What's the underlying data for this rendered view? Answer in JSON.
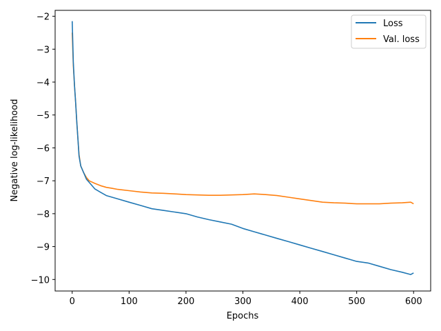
{
  "chart_data": {
    "type": "line",
    "xlabel": "Epochs",
    "ylabel": "Negative log-likelihood",
    "xlim": [
      -30,
      630
    ],
    "ylim": [
      -10.35,
      -1.82
    ],
    "xticks": [
      0,
      100,
      200,
      300,
      400,
      500,
      600
    ],
    "yticks": [
      -10,
      -9,
      -8,
      -7,
      -6,
      -5,
      -4,
      -3,
      -2
    ],
    "grid": false,
    "legend_position": "top-right",
    "series": [
      {
        "name": "Loss",
        "color": "#1f77b4",
        "x": [
          0,
          2,
          4,
          6,
          8,
          10,
          12,
          15,
          20,
          25,
          30,
          40,
          50,
          60,
          70,
          80,
          100,
          120,
          140,
          160,
          180,
          200,
          220,
          240,
          260,
          280,
          300,
          320,
          340,
          360,
          380,
          400,
          420,
          440,
          460,
          480,
          500,
          520,
          540,
          560,
          580,
          595,
          600
        ],
        "y": [
          -2.15,
          -3.4,
          -4.1,
          -4.6,
          -5.2,
          -5.7,
          -6.25,
          -6.55,
          -6.75,
          -6.95,
          -7.05,
          -7.25,
          -7.35,
          -7.45,
          -7.5,
          -7.55,
          -7.65,
          -7.75,
          -7.85,
          -7.9,
          -7.95,
          -8.0,
          -8.1,
          -8.18,
          -8.25,
          -8.32,
          -8.45,
          -8.55,
          -8.65,
          -8.75,
          -8.85,
          -8.95,
          -9.05,
          -9.15,
          -9.25,
          -9.35,
          -9.45,
          -9.5,
          -9.6,
          -9.7,
          -9.78,
          -9.85,
          -9.8
        ]
      },
      {
        "name": "Val. loss",
        "color": "#ff7f0e",
        "x": [
          0,
          2,
          4,
          6,
          8,
          10,
          12,
          15,
          20,
          25,
          30,
          40,
          50,
          60,
          70,
          80,
          100,
          120,
          140,
          160,
          180,
          200,
          220,
          240,
          260,
          280,
          300,
          320,
          340,
          360,
          380,
          400,
          420,
          440,
          460,
          480,
          500,
          520,
          540,
          560,
          580,
          595,
          600
        ],
        "y": [
          -2.5,
          -3.5,
          -4.1,
          -4.6,
          -5.2,
          -5.7,
          -6.2,
          -6.55,
          -6.75,
          -6.9,
          -7.0,
          -7.08,
          -7.15,
          -7.2,
          -7.23,
          -7.26,
          -7.3,
          -7.34,
          -7.37,
          -7.38,
          -7.4,
          -7.42,
          -7.43,
          -7.44,
          -7.44,
          -7.43,
          -7.42,
          -7.4,
          -7.42,
          -7.45,
          -7.5,
          -7.55,
          -7.6,
          -7.65,
          -7.67,
          -7.68,
          -7.7,
          -7.7,
          -7.7,
          -7.68,
          -7.67,
          -7.65,
          -7.7
        ]
      }
    ]
  }
}
